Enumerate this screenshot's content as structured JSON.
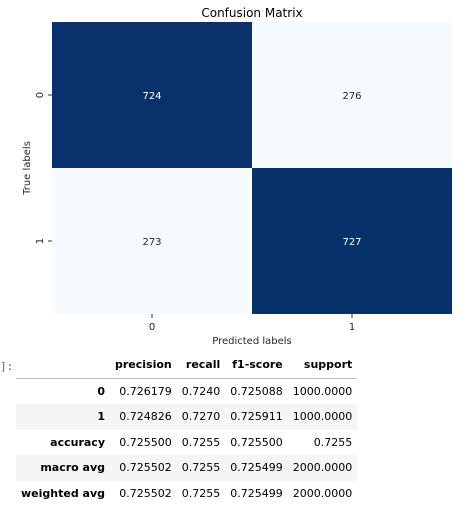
{
  "chart_data": {
    "type": "heatmap",
    "title": "Confusion Matrix",
    "xlabel": "Predicted labels",
    "ylabel": "True labels",
    "x_categories": [
      "0",
      "1"
    ],
    "y_categories": [
      "0",
      "1"
    ],
    "values": [
      [
        724,
        276
      ],
      [
        273,
        727
      ]
    ],
    "vmin": 273,
    "vmax": 727,
    "colormap": "Blues",
    "color_low": "#f7fbff",
    "color_high": "#08306b",
    "text_on_dark": "#ffffff",
    "text_on_light": "#262626"
  },
  "output": {
    "prompt": "]:"
  },
  "report": {
    "columns": [
      "",
      "precision",
      "recall",
      "f1-score",
      "support"
    ],
    "rows": [
      {
        "label": "0",
        "cells": [
          "0.726179",
          "0.7240",
          "0.725088",
          "1000.0000"
        ]
      },
      {
        "label": "1",
        "cells": [
          "0.724826",
          "0.7270",
          "0.725911",
          "1000.0000"
        ]
      },
      {
        "label": "accuracy",
        "cells": [
          "0.725500",
          "0.7255",
          "0.725500",
          "0.7255"
        ]
      },
      {
        "label": "macro avg",
        "cells": [
          "0.725502",
          "0.7255",
          "0.725499",
          "2000.0000"
        ]
      },
      {
        "label": "weighted avg",
        "cells": [
          "0.725502",
          "0.7255",
          "0.725499",
          "2000.0000"
        ]
      }
    ]
  }
}
